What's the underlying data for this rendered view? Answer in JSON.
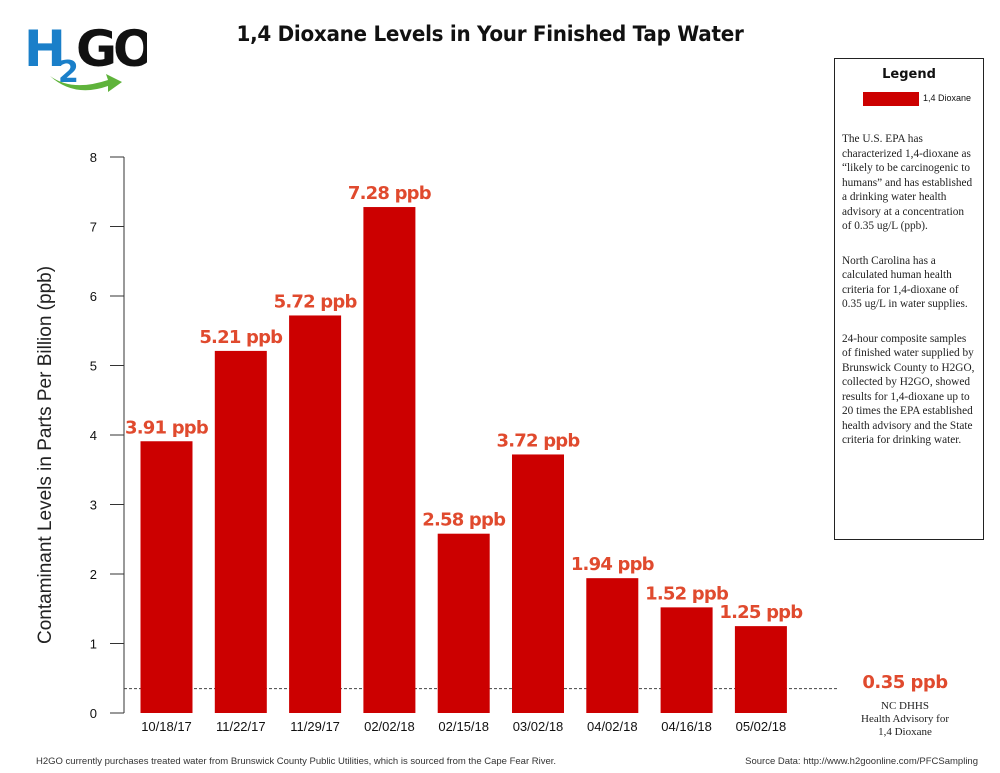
{
  "logo": {
    "text": "H2GO",
    "colors": {
      "h": "#1a7fc9",
      "two": "#1a7fc9",
      "go": "#111111",
      "arrow": "#5fb33b"
    }
  },
  "title": "1,4 Dioxane Levels in Your Finished Tap Water",
  "legend": {
    "title": "Legend",
    "item_label": "1,4 Dioxane",
    "notes": [
      "The U.S. EPA has characterized 1,4-dioxane as “likely to be carcinogenic to humans” and has established a drinking water health advisory at a concentration of 0.35 ug/L (ppb).",
      "North Carolina has a calculated human health criteria for 1,4-dioxane of 0.35 ug/L in water supplies.",
      "24-hour composite samples of finished water supplied by Brunswick County to H2GO, collected by H2GO, showed results for 1,4-dioxane up to 20 times the EPA established health advisory and the State criteria for drinking water."
    ]
  },
  "advisory": {
    "value_label": "0.35 ppb",
    "note_line1": "NC DHHS",
    "note_line2": "Health Advisory for",
    "note_line3": "1,4 Dioxane"
  },
  "footer": {
    "left": "H2GO currently purchases treated water from Brunswick County Public Utilities, which is sourced from the Cape Fear River.",
    "right": "Source Data: http://www.h2goonline.com/PFCSampling"
  },
  "chart_data": {
    "type": "bar",
    "title": "1,4 Dioxane Levels in Your Finished Tap Water",
    "ylabel": "Contaminant Levels in Parts Per Billion (ppb)",
    "xlabel": "",
    "categories": [
      "10/18/17",
      "11/22/17",
      "11/29/17",
      "02/02/18",
      "02/15/18",
      "03/02/18",
      "04/02/18",
      "04/16/18",
      "05/02/18"
    ],
    "values": [
      3.91,
      5.21,
      5.72,
      7.28,
      2.58,
      3.72,
      1.94,
      1.52,
      1.25
    ],
    "data_labels": [
      "3.91 ppb",
      "5.21 ppb",
      "5.72 ppb",
      "7.28 ppb",
      "2.58 ppb",
      "3.72 ppb",
      "1.94 ppb",
      "1.52 ppb",
      "1.25 ppb"
    ],
    "yticks": [
      0,
      1,
      2,
      3,
      4,
      5,
      6,
      7,
      8
    ],
    "ylim": [
      0,
      8
    ],
    "reference_line": {
      "value": 0.35,
      "style": "dashed"
    },
    "bar_color": "#cc0000",
    "label_color": "#e04a2e",
    "legend_entries": [
      "1,4 Dioxane"
    ],
    "legend_position": "right",
    "grid": false
  }
}
